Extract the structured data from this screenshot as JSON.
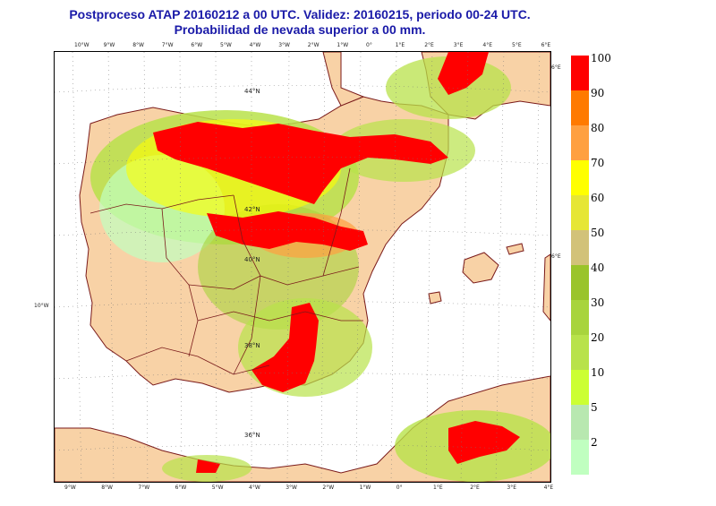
{
  "titles": {
    "line1": "Postproceso ATAP 20160212 a 00 UTC. Validez: 20160215, periodo 00-24 UTC.",
    "line2": "Probabilidad de nevada superior a 00 mm."
  },
  "map": {
    "land_color": "#f8d2a6",
    "sea_color": "#ffffff",
    "border_color": "#7a1a1a",
    "grid_color": "#777777",
    "top_ticks": [
      "10°W",
      "9°W",
      "8°W",
      "7°W",
      "6°W",
      "5°W",
      "4°W",
      "3°W",
      "2°W",
      "1°W",
      "0°",
      "1°E",
      "2°E",
      "3°E",
      "4°E",
      "5°E",
      "6°E"
    ],
    "bottom_ticks": [
      "9°W",
      "8°W",
      "7°W",
      "6°W",
      "5°W",
      "4°W",
      "3°W",
      "2°W",
      "1°W",
      "0°",
      "1°E",
      "2°E",
      "3°E",
      "4°E"
    ],
    "lat_labels": [
      "44°N",
      "42°N",
      "40°N",
      "38°N",
      "36°N"
    ],
    "side_labels": [
      "6°E",
      "6°E",
      "10°W"
    ]
  },
  "legend": {
    "title": "",
    "entries": [
      {
        "label": "100",
        "color": "#ff0000"
      },
      {
        "label": "90",
        "color": "#ff7a00"
      },
      {
        "label": "80",
        "color": "#ffa040"
      },
      {
        "label": "70",
        "color": "#ffff00"
      },
      {
        "label": "60",
        "color": "#e6e635"
      },
      {
        "label": "50",
        "color": "#d2c279"
      },
      {
        "label": "40",
        "color": "#9ac42a"
      },
      {
        "label": "30",
        "color": "#a8d43c"
      },
      {
        "label": "20",
        "color": "#b8e24a"
      },
      {
        "label": "10",
        "color": "#ccff33"
      },
      {
        "label": "5",
        "color": "#b8e8b0"
      },
      {
        "label": "2",
        "color": "#c0ffc0"
      }
    ]
  }
}
